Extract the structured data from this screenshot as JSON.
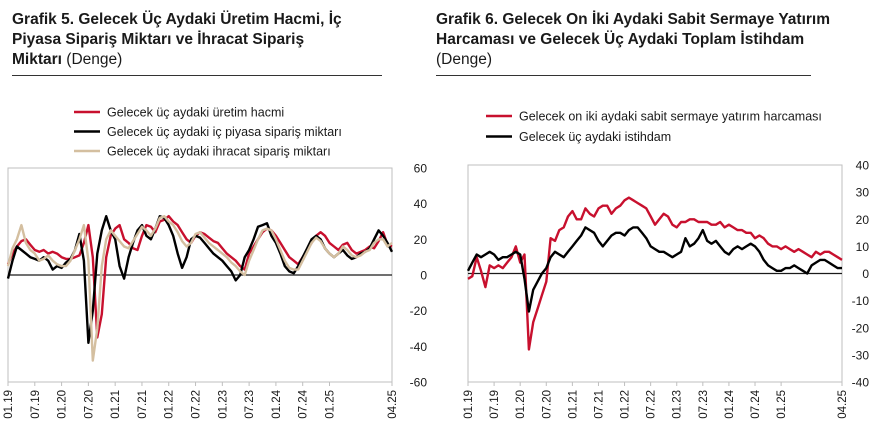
{
  "chart_data": [
    {
      "type": "line",
      "title": "Grafik 5. Gelecek Üç Aydaki Üretim Hacmi, İç Piyasa Sipariş Miktarı ve İhracat Sipariş Miktarı",
      "title_lines": [
        "Grafik 5. Gelecek Üç Aydaki Üretim Hacmi, İç",
        "Piyasa Sipariş Miktarı ve İhracat Sipariş",
        "Miktarı"
      ],
      "subtitle": "(Denge)",
      "xlabel": "",
      "ylabel": "",
      "ylim": [
        -60,
        60
      ],
      "yticks": [
        -60,
        -40,
        -20,
        0,
        20,
        40,
        60
      ],
      "y_axis_side": "right",
      "grid": false,
      "legend_position": "top-left",
      "x_tick_labels": [
        "01.19",
        "07.19",
        "01.20",
        "07.20",
        "01.21",
        "07.21",
        "01.22",
        "07.22",
        "01.23",
        "07.23",
        "01.24",
        "07.24",
        "01.25",
        "04.25"
      ],
      "series": [
        {
          "name": "Gelecek üç aydaki üretim hacmi",
          "color": "#c8102e",
          "values": [
            6,
            12,
            16,
            19,
            20,
            17,
            14,
            13,
            14,
            12,
            13,
            12,
            10,
            9,
            9,
            10,
            11,
            18,
            28,
            10,
            -35,
            -22,
            10,
            22,
            26,
            28,
            20,
            18,
            15,
            14,
            22,
            28,
            27,
            24,
            30,
            31,
            33,
            30,
            28,
            24,
            20,
            18,
            22,
            24,
            23,
            21,
            19,
            18,
            15,
            12,
            10,
            8,
            5,
            3,
            12,
            16,
            20,
            24,
            26,
            25,
            22,
            18,
            14,
            10,
            8,
            6,
            10,
            14,
            18,
            22,
            24,
            22,
            18,
            16,
            14,
            17,
            18,
            14,
            12,
            13,
            14,
            16,
            15,
            19,
            24,
            17,
            16
          ]
        },
        {
          "name": "Gelecek üç aydaki iç piyasa sipariş miktarı",
          "color": "#000000",
          "values": [
            -2,
            8,
            16,
            14,
            12,
            10,
            9,
            8,
            10,
            8,
            3,
            5,
            4,
            7,
            9,
            14,
            23,
            8,
            -38,
            -20,
            12,
            25,
            33,
            25,
            20,
            5,
            -2,
            10,
            18,
            25,
            28,
            22,
            20,
            26,
            33,
            32,
            28,
            22,
            12,
            4,
            10,
            20,
            22,
            21,
            18,
            15,
            12,
            10,
            8,
            5,
            2,
            -3,
            0,
            10,
            14,
            20,
            27,
            28,
            29,
            22,
            18,
            12,
            5,
            2,
            1,
            5,
            10,
            15,
            20,
            22,
            20,
            15,
            12,
            10,
            12,
            14,
            11,
            9,
            10,
            12,
            13,
            15,
            20,
            25,
            22,
            18,
            13
          ]
        },
        {
          "name": "Gelecek üç aydaki ihracat sipariş miktarı",
          "color": "#d4bfa0",
          "values": [
            5,
            15,
            20,
            28,
            18,
            14,
            12,
            8,
            9,
            11,
            8,
            6,
            5,
            5,
            8,
            14,
            20,
            28,
            8,
            -48,
            -30,
            5,
            20,
            25,
            22,
            19,
            16,
            15,
            19,
            23,
            27,
            25,
            22,
            26,
            32,
            33,
            30,
            28,
            24,
            19,
            16,
            18,
            23,
            24,
            21,
            18,
            16,
            14,
            12,
            10,
            7,
            5,
            2,
            0,
            8,
            14,
            20,
            25,
            26,
            25,
            20,
            14,
            8,
            4,
            3,
            3,
            8,
            13,
            18,
            21,
            19,
            15,
            12,
            10,
            12,
            16,
            14,
            11,
            10,
            11,
            13,
            14,
            18,
            20,
            20,
            16,
            18
          ]
        }
      ]
    },
    {
      "type": "line",
      "title": "Grafik 6. Gelecek On İki Aydaki Sabit Sermaye Yatırım Harcaması ve Gelecek Üç Aydaki Toplam İstihdam",
      "title_lines": [
        "Grafik 6. Gelecek On İki Aydaki Sabit Sermaye Yatırım",
        "Harcaması ve Gelecek Üç Aydaki Toplam İstihdam"
      ],
      "subtitle": "(Denge)",
      "xlabel": "",
      "ylabel": "",
      "ylim": [
        -40,
        40
      ],
      "yticks": [
        -40,
        -30,
        -20,
        -10,
        0,
        10,
        20,
        30,
        40
      ],
      "y_axis_side": "right",
      "grid": false,
      "legend_position": "top-left",
      "x_tick_labels": [
        "01.19",
        "07.19",
        "01.20",
        "07.20",
        "01.21",
        "07.21",
        "01.22",
        "07.22",
        "01.23",
        "07.23",
        "01.24",
        "07.24",
        "01.25",
        "04.25"
      ],
      "series": [
        {
          "name": "Gelecek on iki aydaki sabit sermaye yatırım harcaması",
          "color": "#c8102e",
          "values": [
            -2,
            -1,
            6,
            1,
            -5,
            3,
            2,
            3,
            2,
            4,
            6,
            10,
            4,
            7,
            -28,
            -18,
            -13,
            -8,
            -3,
            13,
            12,
            16,
            17,
            21,
            23,
            20,
            20,
            24,
            22,
            21,
            24,
            25,
            25,
            22,
            24,
            25,
            27,
            28,
            27,
            26,
            25,
            24,
            21,
            18,
            20,
            22,
            21,
            18,
            17,
            19,
            19,
            20,
            20,
            19,
            19,
            19,
            18,
            18,
            19,
            17,
            18,
            17,
            16,
            16,
            15,
            15,
            13,
            14,
            13,
            11,
            10,
            10,
            9,
            10,
            9,
            8,
            9,
            8,
            7,
            6,
            8,
            7,
            8,
            8,
            7,
            6,
            5
          ]
        },
        {
          "name": "Gelecek üç aydaki istihdam",
          "color": "#000000",
          "values": [
            1,
            4,
            7,
            6,
            7,
            8,
            7,
            5,
            6,
            6,
            7,
            8,
            7,
            -2,
            -14,
            -6,
            -3,
            0,
            2,
            6,
            8,
            7,
            6,
            8,
            10,
            12,
            14,
            17,
            16,
            15,
            12,
            10,
            12,
            14,
            15,
            15,
            14,
            16,
            17,
            17,
            15,
            13,
            10,
            9,
            8,
            8,
            7,
            6,
            7,
            8,
            13,
            10,
            11,
            13,
            16,
            12,
            11,
            12,
            10,
            8,
            7,
            9,
            10,
            9,
            10,
            11,
            10,
            8,
            5,
            3,
            2,
            1,
            1,
            2,
            2,
            3,
            2,
            1,
            0,
            3,
            4,
            5,
            5,
            4,
            3,
            2,
            2
          ]
        }
      ]
    }
  ]
}
